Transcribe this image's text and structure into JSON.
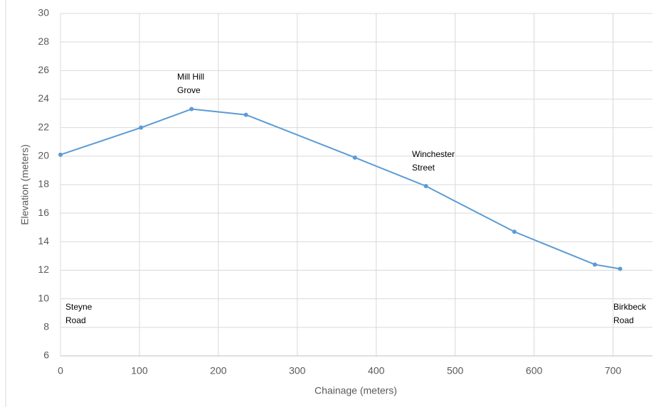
{
  "chart_data": {
    "type": "line",
    "xlabel": "Chainage (meters)",
    "ylabel": "Elevation (meters)",
    "x": [
      0,
      102,
      166,
      235,
      373,
      463,
      575,
      677,
      709
    ],
    "series": [
      {
        "name": "Elevation",
        "color": "#5b9bd5",
        "values": [
          20.1,
          22.0,
          23.3,
          22.9,
          19.9,
          17.9,
          14.7,
          12.4,
          12.1
        ]
      }
    ],
    "xlim": [
      0,
      750
    ],
    "xticks": [
      0,
      100,
      200,
      300,
      400,
      500,
      600,
      700
    ],
    "ylim": [
      6,
      30
    ],
    "yticks": [
      6,
      8,
      10,
      12,
      14,
      16,
      18,
      20,
      22,
      24,
      26,
      28,
      30
    ],
    "grid": true,
    "annotations": [
      [
        "Steyne",
        "Road"
      ],
      [
        "Mill Hill",
        "Grove"
      ],
      [
        "Winchester",
        "Street"
      ],
      [
        "Birkbeck",
        "Road"
      ]
    ]
  }
}
